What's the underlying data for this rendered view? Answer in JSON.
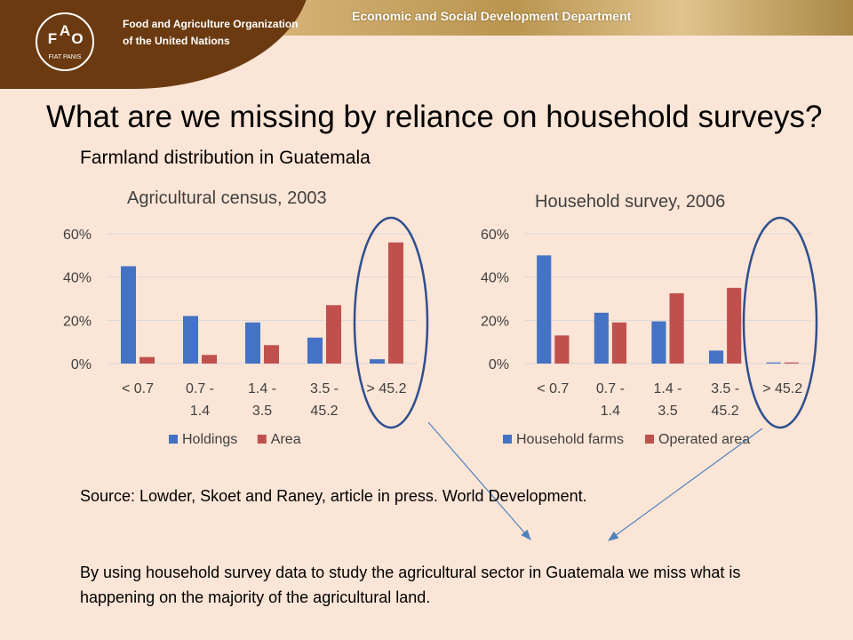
{
  "header": {
    "org_name": "Food and Agriculture Organization of the United Nations",
    "department": "Economic and Social Development Department",
    "logo_letters": [
      "F",
      "A",
      "O"
    ],
    "logo_motto": "FIAT PANIS"
  },
  "slide": {
    "title": "What are we missing by reliance on household surveys?",
    "subtitle": "Farmland distribution in Guatemala",
    "source": "Source: Lowder, Skoet and Raney, article in press. World Development.",
    "conclusion": "By using household survey data to study the agricultural sector in Guatemala we miss what is happening on the majority of the agricultural land."
  },
  "colors": {
    "series1": "#4472c4",
    "series2": "#c0504d",
    "ellipse": "#2f4f8f",
    "arrow": "#4f81bd"
  },
  "chart_data": [
    {
      "type": "bar",
      "title": "Agricultural census, 2003",
      "categories": [
        "< 0.7",
        "0.7 - 1.4",
        "1.4 - 3.5",
        "3.5 - 45.2",
        "> 45.2"
      ],
      "category_lines": [
        [
          "< 0.7"
        ],
        [
          "0.7 -",
          "1.4"
        ],
        [
          "1.4 -",
          "3.5"
        ],
        [
          "3.5 -",
          "45.2"
        ],
        [
          "> 45.2"
        ]
      ],
      "series": [
        {
          "name": "Holdings",
          "values": [
            45,
            22,
            19,
            12,
            2
          ]
        },
        {
          "name": "Area",
          "values": [
            3,
            4,
            8.5,
            27,
            56
          ]
        }
      ],
      "ylim": [
        0,
        60
      ],
      "yticks": [
        "0%",
        "20%",
        "40%",
        "60%"
      ],
      "ytick_values": [
        0,
        20,
        40,
        60
      ],
      "grid": true,
      "legend": "bottom",
      "highlight_category": "> 45.2"
    },
    {
      "type": "bar",
      "title": "Household survey, 2006",
      "categories": [
        "< 0.7",
        "0.7 - 1.4",
        "1.4 - 3.5",
        "3.5 - 45.2",
        "> 45.2"
      ],
      "category_lines": [
        [
          "< 0.7"
        ],
        [
          "0.7 -",
          "1.4"
        ],
        [
          "1.4 -",
          "3.5"
        ],
        [
          "3.5 -",
          "45.2"
        ],
        [
          "> 45.2"
        ]
      ],
      "series": [
        {
          "name": "Household farms",
          "values": [
            50,
            23.5,
            19.5,
            6,
            0.5
          ]
        },
        {
          "name": "Operated area",
          "values": [
            13,
            19,
            32.5,
            35,
            0.5
          ]
        }
      ],
      "ylim": [
        0,
        60
      ],
      "yticks": [
        "0%",
        "20%",
        "40%",
        "60%"
      ],
      "ytick_values": [
        0,
        20,
        40,
        60
      ],
      "grid": true,
      "legend": "bottom",
      "highlight_category": "> 45.2"
    }
  ]
}
